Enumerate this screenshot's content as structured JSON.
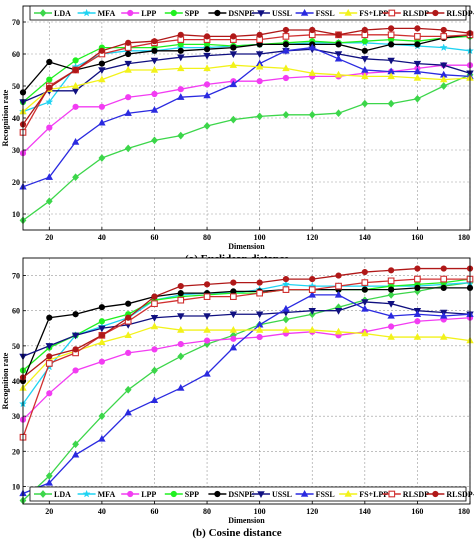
{
  "series_styles": [
    {
      "name": "LDA",
      "color": "#3cd64a",
      "marker": "diamond"
    },
    {
      "name": "MFA",
      "color": "#1fd3f2",
      "marker": "star"
    },
    {
      "name": "LPP",
      "color": "#f23cf2",
      "marker": "circle"
    },
    {
      "name": "SPP",
      "color": "#20f020",
      "marker": "circle"
    },
    {
      "name": "DSNPE",
      "color": "#000000",
      "marker": "circle"
    },
    {
      "name": "USSL",
      "color": "#101080",
      "marker": "triangle-down"
    },
    {
      "name": "FSSL",
      "color": "#2a2ae0",
      "marker": "triangle-up"
    },
    {
      "name": "FS+LPP",
      "color": "#f2f21a",
      "marker": "triangle-up"
    },
    {
      "name": "RLSDP",
      "color": "#d03030",
      "marker": "square"
    },
    {
      "name": "RLSDP-FS",
      "color": "#b01818",
      "marker": "circle"
    }
  ],
  "chart_data": [
    {
      "type": "line",
      "caption": "(a) Euclidean distance",
      "xlabel": "Dimension",
      "ylabel": "Recognition rate",
      "xlim": [
        10,
        180
      ],
      "ylim": [
        5,
        75
      ],
      "xticks": [
        20,
        40,
        60,
        80,
        100,
        120,
        140,
        160,
        180
      ],
      "yticks": [
        10,
        20,
        30,
        40,
        50,
        60,
        70
      ],
      "grid": true,
      "legend": "top",
      "x": [
        10,
        20,
        30,
        40,
        50,
        60,
        70,
        80,
        90,
        100,
        110,
        120,
        130,
        140,
        150,
        160,
        170,
        180
      ],
      "series": [
        {
          "name": "LDA",
          "values": [
            8,
            14,
            21.5,
            27.5,
            30.5,
            33,
            34.5,
            37.5,
            39.5,
            40.5,
            41,
            41,
            41.5,
            44.5,
            44.5,
            46,
            50,
            53.5
          ]
        },
        {
          "name": "MFA",
          "values": [
            42,
            45,
            56,
            60,
            61,
            61,
            62,
            62,
            62.5,
            63,
            63,
            63.5,
            63.5,
            63.5,
            63,
            62.5,
            62,
            61
          ]
        },
        {
          "name": "LPP",
          "values": [
            29,
            37,
            43.5,
            43.5,
            46.5,
            47.5,
            49,
            50.5,
            51.5,
            51.5,
            52.5,
            53,
            53,
            54,
            54.5,
            55.5,
            56.5,
            56.5
          ]
        },
        {
          "name": "SPP",
          "values": [
            45,
            52,
            58,
            62,
            62,
            62,
            63,
            63,
            62.5,
            63,
            63.5,
            64,
            63.5,
            64,
            64.5,
            64,
            65,
            65.5
          ]
        },
        {
          "name": "DSNPE",
          "values": [
            48,
            57.5,
            55,
            57,
            60,
            61,
            61,
            61.5,
            62,
            63,
            63,
            63,
            63,
            61,
            63,
            63,
            65,
            66
          ]
        },
        {
          "name": "USSL",
          "values": [
            45,
            48.5,
            48.5,
            55,
            57,
            58,
            59,
            59.5,
            60,
            60,
            61,
            61.5,
            60,
            58.5,
            58,
            57,
            56.5,
            54
          ]
        },
        {
          "name": "FSSL",
          "values": [
            18.5,
            21.5,
            32.5,
            38.5,
            41.5,
            42.5,
            46.5,
            47,
            50.5,
            57,
            61,
            62,
            58.5,
            55,
            54.5,
            54.5,
            53.5,
            53
          ]
        },
        {
          "name": "FS+LPP",
          "values": [
            42,
            49,
            50,
            52,
            55,
            55,
            55.5,
            55.5,
            56.5,
            56,
            55.5,
            54,
            53.5,
            53,
            53,
            52.5,
            52,
            52.5
          ]
        },
        {
          "name": "RLSDP",
          "values": [
            35.5,
            50,
            55,
            60,
            62,
            63.5,
            64.5,
            64.5,
            64.5,
            64.5,
            65.5,
            66,
            66,
            66,
            66,
            65.5,
            65.5,
            66
          ]
        },
        {
          "name": "RLSDP-FS",
          "values": [
            38,
            49.5,
            55,
            61,
            63.5,
            64,
            66,
            65.5,
            65.5,
            66,
            67.5,
            67.5,
            66,
            67.5,
            68,
            68,
            67.5,
            66.5
          ]
        }
      ]
    },
    {
      "type": "line",
      "caption": "(b) Cosine distance",
      "xlabel": "Dimension",
      "ylabel": "Recognition rate",
      "xlim": [
        10,
        180
      ],
      "ylim": [
        5,
        75
      ],
      "xticks": [
        20,
        40,
        60,
        80,
        100,
        120,
        140,
        160,
        180
      ],
      "yticks": [
        10,
        20,
        30,
        40,
        50,
        60,
        70
      ],
      "grid": true,
      "legend": "bottom",
      "x": [
        10,
        20,
        30,
        40,
        50,
        60,
        70,
        80,
        90,
        100,
        110,
        120,
        130,
        140,
        150,
        160,
        170,
        180
      ],
      "series": [
        {
          "name": "LDA",
          "values": [
            6,
            13,
            22,
            30,
            37.5,
            43,
            47,
            50.5,
            53,
            56,
            57.5,
            59,
            61,
            63,
            64.5,
            65.5,
            67,
            68
          ]
        },
        {
          "name": "MFA",
          "values": [
            33.5,
            44,
            53,
            55.5,
            58,
            63,
            64.5,
            65,
            65,
            66,
            67.5,
            67,
            67,
            67,
            67,
            67,
            67.5,
            68
          ]
        },
        {
          "name": "LPP",
          "values": [
            29,
            36.5,
            43,
            45.5,
            48,
            49,
            50.5,
            51.5,
            52,
            52.5,
            53.5,
            54,
            53,
            54,
            55.5,
            57,
            57.5,
            58
          ]
        },
        {
          "name": "SPP",
          "values": [
            43,
            49.5,
            53,
            57,
            59,
            63,
            64,
            64.5,
            65,
            65,
            66,
            66,
            66,
            66,
            67,
            67.5,
            68,
            69
          ]
        },
        {
          "name": "DSNPE",
          "values": [
            40,
            58,
            59,
            61,
            62,
            64,
            65,
            65,
            65.5,
            65.5,
            66,
            66,
            66,
            66,
            66,
            66.5,
            66.5,
            66.5
          ]
        },
        {
          "name": "USSL",
          "values": [
            47,
            50,
            53,
            55,
            56,
            58,
            58.5,
            58.5,
            59,
            59,
            59.5,
            60,
            60,
            62.5,
            62,
            60,
            59.5,
            59
          ]
        },
        {
          "name": "FSSL",
          "values": [
            8,
            11,
            19,
            23.5,
            31,
            34.5,
            38,
            42,
            49.5,
            56,
            60.5,
            64.5,
            64.5,
            60.5,
            58.5,
            59,
            58.5,
            59
          ]
        },
        {
          "name": "FS+LPP",
          "values": [
            38,
            46,
            48.5,
            51,
            53,
            55.5,
            54.5,
            54.5,
            54.5,
            54.5,
            54.5,
            54.5,
            54,
            53.5,
            52.5,
            52.5,
            52.5,
            51.5
          ]
        },
        {
          "name": "RLSDP",
          "values": [
            24,
            45,
            48,
            53,
            57,
            62,
            63,
            64,
            64,
            65,
            66,
            66,
            67,
            68,
            68.5,
            69,
            69,
            69
          ]
        },
        {
          "name": "RLSDP-FS",
          "values": [
            41,
            47,
            49,
            53,
            58,
            64,
            67,
            67.5,
            68,
            68,
            69,
            69,
            70,
            71,
            71.5,
            72,
            72,
            72
          ]
        }
      ]
    }
  ]
}
